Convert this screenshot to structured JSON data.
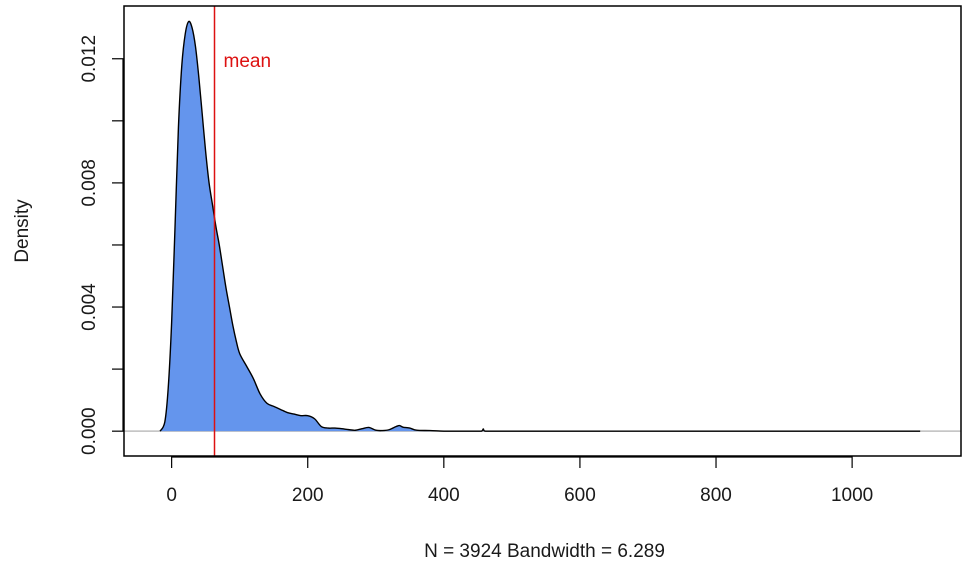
{
  "chart_data": {
    "type": "area",
    "title": "",
    "xlabel": "N = 3924   Bandwidth = 6.289",
    "ylabel": "Density",
    "xlim": [
      -70,
      1160
    ],
    "ylim": [
      -0.0008,
      0.0137
    ],
    "x_ticks": [
      0,
      200,
      400,
      600,
      800,
      1000
    ],
    "x_tick_labels": [
      "0",
      "200",
      "400",
      "600",
      "800",
      "1000"
    ],
    "y_ticks": [
      0.0,
      0.002,
      0.004,
      0.006,
      0.008,
      0.01,
      0.012
    ],
    "y_tick_labels": [
      "0.000",
      "",
      "0.004",
      "",
      "0.008",
      "",
      "0.012"
    ],
    "grid": false,
    "baseline": 0,
    "fill_color": "#6495ED",
    "line_color": "#000000",
    "baseline_color": "#bebebe",
    "series": [
      {
        "x": [
          -17,
          -10,
          -5,
          0,
          5,
          10,
          15,
          20,
          25,
          30,
          35,
          40,
          45,
          50,
          55,
          60,
          65,
          70,
          75,
          80,
          85,
          90,
          95,
          100,
          110,
          120,
          130,
          140,
          150,
          160,
          170,
          180,
          190,
          200,
          210,
          220,
          230,
          240,
          250,
          260,
          270,
          280,
          290,
          300,
          310,
          320,
          330,
          335,
          340,
          350,
          360,
          380,
          400,
          420,
          440,
          455,
          458,
          461,
          480,
          500,
          600,
          700,
          800,
          900,
          1000,
          1100
        ],
        "y": [
          0.0,
          0.0003,
          0.0014,
          0.0035,
          0.0066,
          0.0098,
          0.0118,
          0.0128,
          0.0132,
          0.013,
          0.0124,
          0.0114,
          0.0102,
          0.009,
          0.008,
          0.0073,
          0.0066,
          0.006,
          0.0053,
          0.0046,
          0.004,
          0.0034,
          0.0029,
          0.0025,
          0.0021,
          0.0017,
          0.0012,
          0.0009,
          0.0008,
          0.0007,
          0.0006,
          0.00055,
          0.0005,
          0.0005,
          0.0004,
          0.00015,
          0.0001,
          0.0001,
          8e-05,
          5e-05,
          3e-05,
          8e-05,
          0.00012,
          3e-05,
          2e-05,
          5e-05,
          0.00015,
          0.00018,
          0.00013,
          0.0001,
          3e-05,
          2e-05,
          0.0,
          0.0,
          0.0,
          0.0,
          7e-05,
          0.0,
          0.0,
          0.0,
          0.0,
          0.0,
          0.0,
          0.0,
          0.0,
          0.0
        ]
      }
    ],
    "reference_line": {
      "x": 63,
      "label": "mean",
      "color": "#DD1111"
    }
  }
}
